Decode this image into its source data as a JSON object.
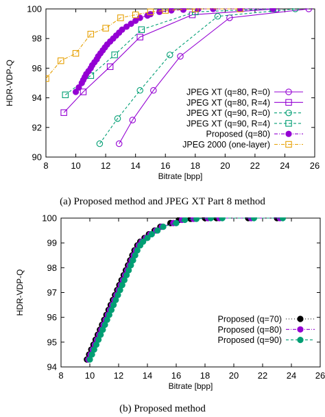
{
  "chart_data": [
    {
      "type": "line",
      "caption": "(a) Proposed method and JPEG XT Part 8 method",
      "xlabel": "Bitrate [bpp]",
      "ylabel": "HDR-VDP-Q",
      "xlim": [
        8,
        26
      ],
      "ylim": [
        90,
        100
      ],
      "xticks": [
        8,
        10,
        12,
        14,
        16,
        18,
        20,
        22,
        24,
        26
      ],
      "yticks": [
        90,
        92,
        94,
        96,
        98,
        100
      ],
      "grid": false,
      "legend_position": "bottom-right",
      "series": [
        {
          "name": "JPEG XT (q=80, R=0)",
          "color": "#9400d3",
          "marker": "circle-open",
          "dash": "solid",
          "x": [
            12.9,
            13.8,
            15.2,
            17.0,
            20.3,
            25.6
          ],
          "y": [
            90.9,
            92.5,
            94.5,
            96.8,
            99.4,
            100.0
          ]
        },
        {
          "name": "JPEG XT (q=80, R=4)",
          "color": "#9400d3",
          "marker": "square-open",
          "dash": "solid",
          "x": [
            9.2,
            10.5,
            12.3,
            14.3,
            17.8,
            23.4
          ],
          "y": [
            93.0,
            94.4,
            96.1,
            98.1,
            99.6,
            100.0
          ]
        },
        {
          "name": "JPEG XT (q=90, R=0)",
          "color": "#009e73",
          "marker": "circle-open",
          "dash": "dash",
          "x": [
            11.6,
            12.8,
            14.3,
            16.3,
            19.5,
            24.7
          ],
          "y": [
            90.9,
            92.6,
            94.5,
            96.9,
            99.5,
            100.0
          ]
        },
        {
          "name": "JPEG XT (q=90, R=4)",
          "color": "#009e73",
          "marker": "square-open",
          "dash": "dash",
          "x": [
            9.3,
            11.0,
            12.6,
            14.4,
            18.0,
            23.2
          ],
          "y": [
            94.2,
            95.5,
            96.9,
            98.6,
            99.8,
            100.0
          ]
        },
        {
          "name": "Proposed (q=80)",
          "color": "#9400d3",
          "marker": "circle-filled",
          "dash": "dashdot",
          "x": [
            10.0,
            10.2,
            10.4,
            10.5,
            10.6,
            10.7,
            10.85,
            11.0,
            11.1,
            11.25,
            11.4,
            11.5,
            11.65,
            11.8,
            11.95,
            12.1,
            12.3,
            12.5,
            12.7,
            12.9,
            13.1,
            13.4,
            13.7,
            14.0,
            14.3,
            14.8,
            15.0,
            15.6,
            16.4,
            17.2,
            18.2,
            19.2,
            21.0,
            23.2
          ],
          "y": [
            94.4,
            94.7,
            95.0,
            95.2,
            95.4,
            95.6,
            95.8,
            96.0,
            96.2,
            96.4,
            96.6,
            96.8,
            97.0,
            97.2,
            97.4,
            97.6,
            97.8,
            98.0,
            98.2,
            98.4,
            98.6,
            98.8,
            99.0,
            99.2,
            99.4,
            99.55,
            99.65,
            99.8,
            99.9,
            99.95,
            100.0,
            100.0,
            100.0,
            100.0
          ]
        },
        {
          "name": "JPEG 2000 (one-layer)",
          "color": "#e69f00",
          "marker": "square-open",
          "dash": "dashdot",
          "x": [
            8.0,
            9.0,
            10.0,
            11.0,
            12.0,
            13.0,
            14.0,
            15.0,
            16.0,
            18.0,
            21.0
          ],
          "y": [
            95.3,
            96.5,
            97.0,
            98.3,
            98.7,
            99.4,
            99.6,
            99.8,
            99.9,
            100.0,
            100.0
          ]
        }
      ]
    },
    {
      "type": "line",
      "caption": "(b) Proposed method",
      "xlabel": "Bitrate [bpp]",
      "ylabel": "HDR-VDP-Q",
      "xlim": [
        8,
        26
      ],
      "ylim": [
        94,
        100
      ],
      "xticks": [
        8,
        10,
        12,
        14,
        16,
        18,
        20,
        22,
        24,
        26
      ],
      "yticks": [
        94,
        95,
        96,
        97,
        98,
        99,
        100
      ],
      "grid": false,
      "legend_position": "right",
      "series": [
        {
          "name": "Proposed (q=70)",
          "color": "#000000",
          "marker": "circle-filled",
          "dash": "dot",
          "x": [
            9.8,
            9.95,
            10.1,
            10.25,
            10.4,
            10.55,
            10.7,
            10.85,
            11.0,
            11.15,
            11.3,
            11.45,
            11.6,
            11.75,
            11.9,
            12.05,
            12.2,
            12.35,
            12.5,
            12.65,
            12.8,
            12.95,
            13.1,
            13.3,
            13.5,
            13.8,
            14.1,
            14.5,
            14.9,
            15.6,
            16.2,
            17.0,
            18.0,
            18.8,
            21.0,
            23.0
          ],
          "y": [
            94.3,
            94.5,
            94.7,
            94.9,
            95.1,
            95.3,
            95.5,
            95.7,
            95.9,
            96.1,
            96.3,
            96.5,
            96.7,
            96.9,
            97.1,
            97.3,
            97.5,
            97.7,
            97.9,
            98.1,
            98.3,
            98.5,
            98.7,
            98.9,
            99.05,
            99.2,
            99.35,
            99.5,
            99.65,
            99.8,
            99.93,
            99.97,
            100.0,
            100.0,
            100.0,
            100.0
          ]
        },
        {
          "name": "Proposed (q=80)",
          "color": "#9400d3",
          "marker": "circle-filled",
          "dash": "dashdot",
          "x": [
            9.9,
            10.05,
            10.2,
            10.35,
            10.5,
            10.65,
            10.8,
            10.95,
            11.1,
            11.25,
            11.4,
            11.55,
            11.7,
            11.85,
            12.0,
            12.15,
            12.3,
            12.45,
            12.6,
            12.75,
            12.9,
            13.05,
            13.2,
            13.4,
            13.6,
            13.9,
            14.2,
            14.6,
            15.0,
            15.8,
            16.4,
            17.2,
            18.2,
            19.0,
            21.2,
            23.2
          ],
          "y": [
            94.3,
            94.5,
            94.7,
            94.9,
            95.1,
            95.3,
            95.5,
            95.7,
            95.9,
            96.1,
            96.3,
            96.5,
            96.7,
            96.9,
            97.1,
            97.3,
            97.5,
            97.7,
            97.9,
            98.1,
            98.3,
            98.5,
            98.7,
            98.9,
            99.05,
            99.2,
            99.35,
            99.5,
            99.65,
            99.8,
            99.93,
            99.97,
            100.0,
            100.0,
            100.0,
            100.0
          ]
        },
        {
          "name": "Proposed (q=90)",
          "color": "#009e73",
          "marker": "circle-filled",
          "dash": "dash",
          "x": [
            10.0,
            10.15,
            10.3,
            10.45,
            10.6,
            10.75,
            10.9,
            11.05,
            11.2,
            11.35,
            11.5,
            11.65,
            11.8,
            11.95,
            12.1,
            12.25,
            12.4,
            12.55,
            12.7,
            12.85,
            13.0,
            13.15,
            13.3,
            13.5,
            13.7,
            14.0,
            14.3,
            14.7,
            15.1,
            16.0,
            16.6,
            17.4,
            18.4,
            19.2,
            21.4,
            23.4
          ],
          "y": [
            94.3,
            94.5,
            94.7,
            94.9,
            95.1,
            95.3,
            95.5,
            95.7,
            95.9,
            96.1,
            96.3,
            96.5,
            96.7,
            96.9,
            97.1,
            97.3,
            97.5,
            97.7,
            97.9,
            98.1,
            98.3,
            98.5,
            98.7,
            98.9,
            99.05,
            99.2,
            99.35,
            99.5,
            99.65,
            99.8,
            99.93,
            99.97,
            100.0,
            100.0,
            100.0,
            100.0
          ]
        }
      ]
    }
  ]
}
